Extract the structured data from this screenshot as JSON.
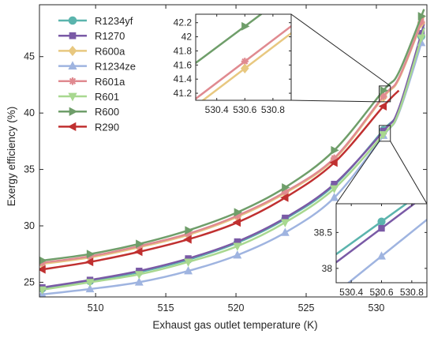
{
  "chart_data": {
    "type": "line",
    "xlabel": "Exhaust gas outlet temperature (K)",
    "ylabel": "Exergy efficiency (%)",
    "xlim": [
      506,
      533.6
    ],
    "ylim": [
      23.7,
      49.6
    ],
    "xticks": [
      510,
      515,
      520,
      525,
      530
    ],
    "yticks": [
      25,
      30,
      35,
      40,
      45
    ],
    "grid": false,
    "legend_position": "top-left",
    "marker_x": [
      506.2,
      509.6,
      513.1,
      516.6,
      520.1,
      523.5,
      527.0,
      530.5,
      533.2
    ],
    "series": [
      {
        "name": "R1234yf",
        "color": "#5bb4ad",
        "marker": "circle",
        "x": [
          506,
          509.6,
          513.1,
          516.6,
          520.1,
          523.5,
          527.0,
          530.5,
          531.6,
          533.4
        ],
        "y": [
          24.4,
          25.1,
          25.9,
          27.0,
          28.5,
          30.6,
          33.6,
          38.5,
          40.3,
          47.6
        ]
      },
      {
        "name": "R1270",
        "color": "#7a5aa6",
        "marker": "square",
        "x": [
          506,
          509.6,
          513.1,
          516.6,
          520.1,
          523.5,
          527.0,
          530.5,
          531.6,
          533.4
        ],
        "y": [
          24.5,
          25.2,
          26.0,
          27.1,
          28.6,
          30.7,
          33.7,
          38.4,
          40.4,
          47.9
        ]
      },
      {
        "name": "R600a",
        "color": "#e8c880",
        "marker": "diamond",
        "x": [
          506,
          509.6,
          513.1,
          516.6,
          520.1,
          523.5,
          527.0,
          530.5,
          531.6,
          533.4
        ],
        "y": [
          26.6,
          27.2,
          28.1,
          29.2,
          30.8,
          32.9,
          35.9,
          41.4,
          43.0,
          48.6
        ]
      },
      {
        "name": "R1234ze",
        "color": "#9fb4e0",
        "marker": "triangle-up",
        "x": [
          506,
          509.6,
          513.1,
          516.6,
          520.1,
          523.5,
          527.0,
          530.5,
          531.6,
          533.4
        ],
        "y": [
          23.9,
          24.4,
          25.0,
          26.0,
          27.4,
          29.4,
          32.5,
          38.0,
          40.0,
          47.0
        ]
      },
      {
        "name": "R601a",
        "color": "#e08a90",
        "marker": "asterisk",
        "x": [
          506,
          509.6,
          513.1,
          516.6,
          520.1,
          523.5,
          527.0,
          530.5,
          531.6,
          533.4
        ],
        "y": [
          26.7,
          27.3,
          28.2,
          29.3,
          30.9,
          33.0,
          36.0,
          41.5,
          43.1,
          48.7
        ]
      },
      {
        "name": "R601",
        "color": "#a8d890",
        "marker": "triangle-down",
        "x": [
          506,
          509.6,
          513.1,
          516.6,
          520.1,
          523.5,
          527.0,
          530.5,
          531.6,
          533.4
        ],
        "y": [
          24.3,
          25.0,
          25.7,
          26.8,
          28.2,
          30.3,
          33.3,
          38.1,
          40.1,
          47.5
        ]
      },
      {
        "name": "R600",
        "color": "#6f9e6a",
        "marker": "triangle-right",
        "x": [
          506,
          509.6,
          513.1,
          516.6,
          520.1,
          523.5,
          527.0,
          530.5,
          531.6,
          533.4
        ],
        "y": [
          26.9,
          27.5,
          28.4,
          29.6,
          31.2,
          33.4,
          36.7,
          42.0,
          43.6,
          49.2
        ]
      },
      {
        "name": "R290",
        "color": "#c03030",
        "marker": "triangle-left",
        "x": [
          506,
          509.6,
          513.1,
          516.6,
          520.1,
          523.5,
          527.0,
          530.5,
          531.6
        ],
        "y": [
          26.1,
          26.8,
          27.7,
          28.8,
          30.3,
          32.5,
          35.6,
          40.6,
          42.0
        ]
      }
    ],
    "insets": [
      {
        "name": "upper-inset",
        "xlim": [
          530.25,
          530.93
        ],
        "ylim": [
          41.1,
          42.32
        ],
        "xticks": [
          530.4,
          530.6,
          530.8
        ],
        "xtick_labels": [
          "530.4",
          "530.6",
          "530.8"
        ],
        "yticks": [
          41.2,
          41.4,
          41.6,
          41.8,
          42,
          42.2
        ],
        "ytick_labels": [
          "41.2",
          "41.4",
          "41.6",
          "41.8",
          "42",
          "42.2"
        ],
        "series": [
          "R600",
          "R601a",
          "R600a"
        ],
        "marker_x": [
          530.6
        ],
        "source_box": {
          "x": [
            530.2,
            531.0
          ],
          "y": [
            41.0,
            42.4
          ]
        }
      },
      {
        "name": "lower-inset",
        "xlim": [
          530.3,
          530.9
        ],
        "ylim": [
          37.8,
          38.9
        ],
        "xticks": [
          530.4,
          530.6,
          530.8
        ],
        "xtick_labels": [
          "530.4",
          "530.6",
          "530.8"
        ],
        "yticks": [
          38,
          38.5
        ],
        "ytick_labels": [
          "38",
          "38.5"
        ],
        "series": [
          "R1234yf",
          "R1270",
          "R1234ze"
        ],
        "marker_x": [
          530.6
        ],
        "source_box": {
          "x": [
            530.2,
            531.0
          ],
          "y": [
            37.5,
            38.9
          ]
        }
      }
    ]
  }
}
